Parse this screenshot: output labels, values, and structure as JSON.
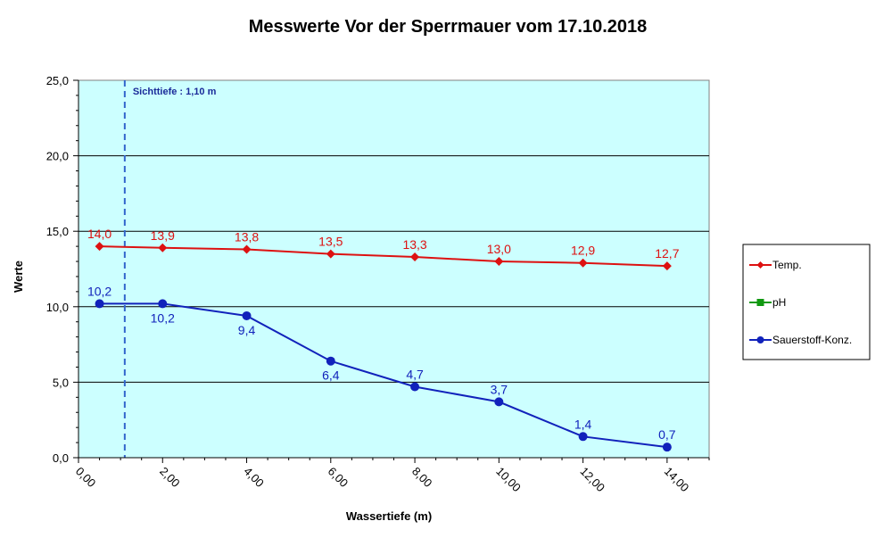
{
  "chart_data": {
    "type": "line",
    "title": "Messwerte Vor der Sperrmauer vom 17.10.2018",
    "xlabel": "Wassertiefe  (m)",
    "ylabel": "Werte",
    "xlim": [
      0,
      15
    ],
    "ylim": [
      0,
      25
    ],
    "x_ticks": [
      "0,00",
      "2,00",
      "4,00",
      "6,00",
      "8,00",
      "10,00",
      "12,00",
      "14,00"
    ],
    "x_tick_values": [
      0,
      2,
      4,
      6,
      8,
      10,
      12,
      14
    ],
    "y_ticks": [
      "0,0",
      "5,0",
      "10,0",
      "15,0",
      "20,0",
      "25,0"
    ],
    "y_tick_values": [
      0,
      5,
      10,
      15,
      20,
      25
    ],
    "grid": "horizontal major lines",
    "plot_background": "#ccffff",
    "legend_position": "right",
    "annotation": {
      "label": "Sichttiefe : 1,10 m",
      "x": 1.1,
      "color": "#3366cc"
    },
    "series": [
      {
        "name": "Temp.",
        "color": "#dd1111",
        "marker": "diamond",
        "x": [
          0.5,
          2,
          4,
          6,
          8,
          10,
          12,
          14
        ],
        "values": [
          14.0,
          13.9,
          13.8,
          13.5,
          13.3,
          13.0,
          12.9,
          12.7
        ],
        "labels": [
          "14,0",
          "13,9",
          "13,8",
          "13,5",
          "13,3",
          "13,0",
          "12,9",
          "12,7"
        ],
        "label_pos": [
          "above",
          "above",
          "above",
          "above",
          "above",
          "above",
          "above",
          "above"
        ]
      },
      {
        "name": "pH",
        "color": "#119911",
        "marker": "square",
        "x": [],
        "values": [],
        "labels": [],
        "label_pos": []
      },
      {
        "name": "Sauerstoff-Konz.",
        "color": "#1122bb",
        "marker": "circle",
        "x": [
          0.5,
          2,
          4,
          6,
          8,
          10,
          12,
          14
        ],
        "values": [
          10.2,
          10.2,
          9.4,
          6.4,
          4.7,
          3.7,
          1.4,
          0.7
        ],
        "labels": [
          "10,2",
          "10,2",
          "9,4",
          "6,4",
          "4,7",
          "3,7",
          "1,4",
          "0,7"
        ],
        "label_pos": [
          "above",
          "below",
          "below",
          "below",
          "above",
          "above",
          "above",
          "above"
        ]
      }
    ]
  }
}
